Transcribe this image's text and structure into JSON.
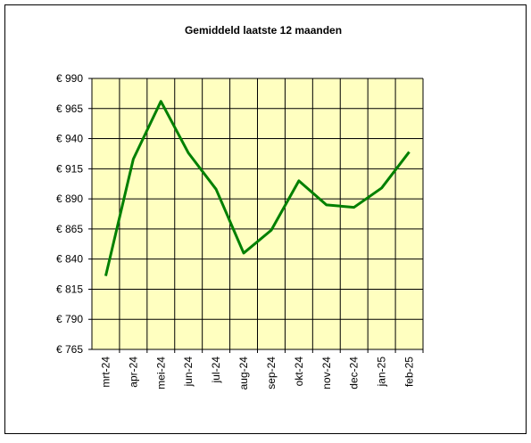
{
  "chart_data": {
    "type": "line",
    "title": "Gemiddeld laatste 12 maanden",
    "categories": [
      "mrt-24",
      "apr-24",
      "mei-24",
      "jun-24",
      "jul-24",
      "aug-24",
      "sep-24",
      "okt-24",
      "nov-24",
      "dec-24",
      "jan-25",
      "feb-25"
    ],
    "series": [
      {
        "name": "Gemiddeld",
        "color": "#008000",
        "values": [
          826,
          923,
          971,
          928,
          898,
          845,
          864,
          905,
          885,
          883,
          899,
          929
        ]
      }
    ],
    "ylim": [
      765,
      990
    ],
    "yticks": [
      {
        "value": 765,
        "label": "€ 765"
      },
      {
        "value": 790,
        "label": "€ 790"
      },
      {
        "value": 815,
        "label": "€ 815"
      },
      {
        "value": 840,
        "label": "€ 840"
      },
      {
        "value": 865,
        "label": "€ 865"
      },
      {
        "value": 890,
        "label": "€ 890"
      },
      {
        "value": 915,
        "label": "€ 915"
      },
      {
        "value": 940,
        "label": "€ 940"
      },
      {
        "value": 965,
        "label": "€ 965"
      },
      {
        "value": 990,
        "label": "€ 990"
      }
    ],
    "grid": true,
    "plot_background": "#ffffc0"
  }
}
